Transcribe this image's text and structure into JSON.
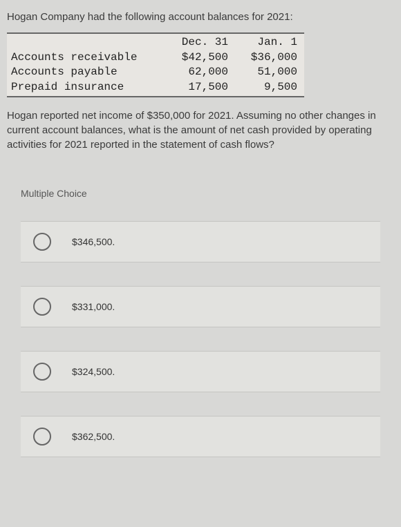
{
  "intro": "Hogan Company had the following account balances for 2021:",
  "table": {
    "header": {
      "label": "",
      "col1": "Dec. 31",
      "col2": "Jan. 1"
    },
    "rows": [
      {
        "label": "Accounts receivable",
        "col1": "$42,500",
        "col2": "$36,000"
      },
      {
        "label": "Accounts payable",
        "col1": "62,000",
        "col2": "51,000"
      },
      {
        "label": "Prepaid insurance",
        "col1": "17,500",
        "col2": "9,500"
      }
    ],
    "border_color": "#666666",
    "bg_color": "#e8e6e2",
    "font_family": "Courier New"
  },
  "question": "Hogan reported net income of $350,000 for 2021. Assuming no other changes in current account balances, what is the amount of net cash provided by operating activities for 2021 reported in the statement of cash flows?",
  "mc_label": "Multiple Choice",
  "options": [
    {
      "text": "$346,500."
    },
    {
      "text": "$331,000."
    },
    {
      "text": "$324,500."
    },
    {
      "text": "$362,500."
    }
  ],
  "colors": {
    "page_bg": "#d8d8d6",
    "option_bg": "#e2e2df",
    "option_border": "#c5c5c2",
    "radio_border": "#666666",
    "text": "#3a3a3a"
  }
}
